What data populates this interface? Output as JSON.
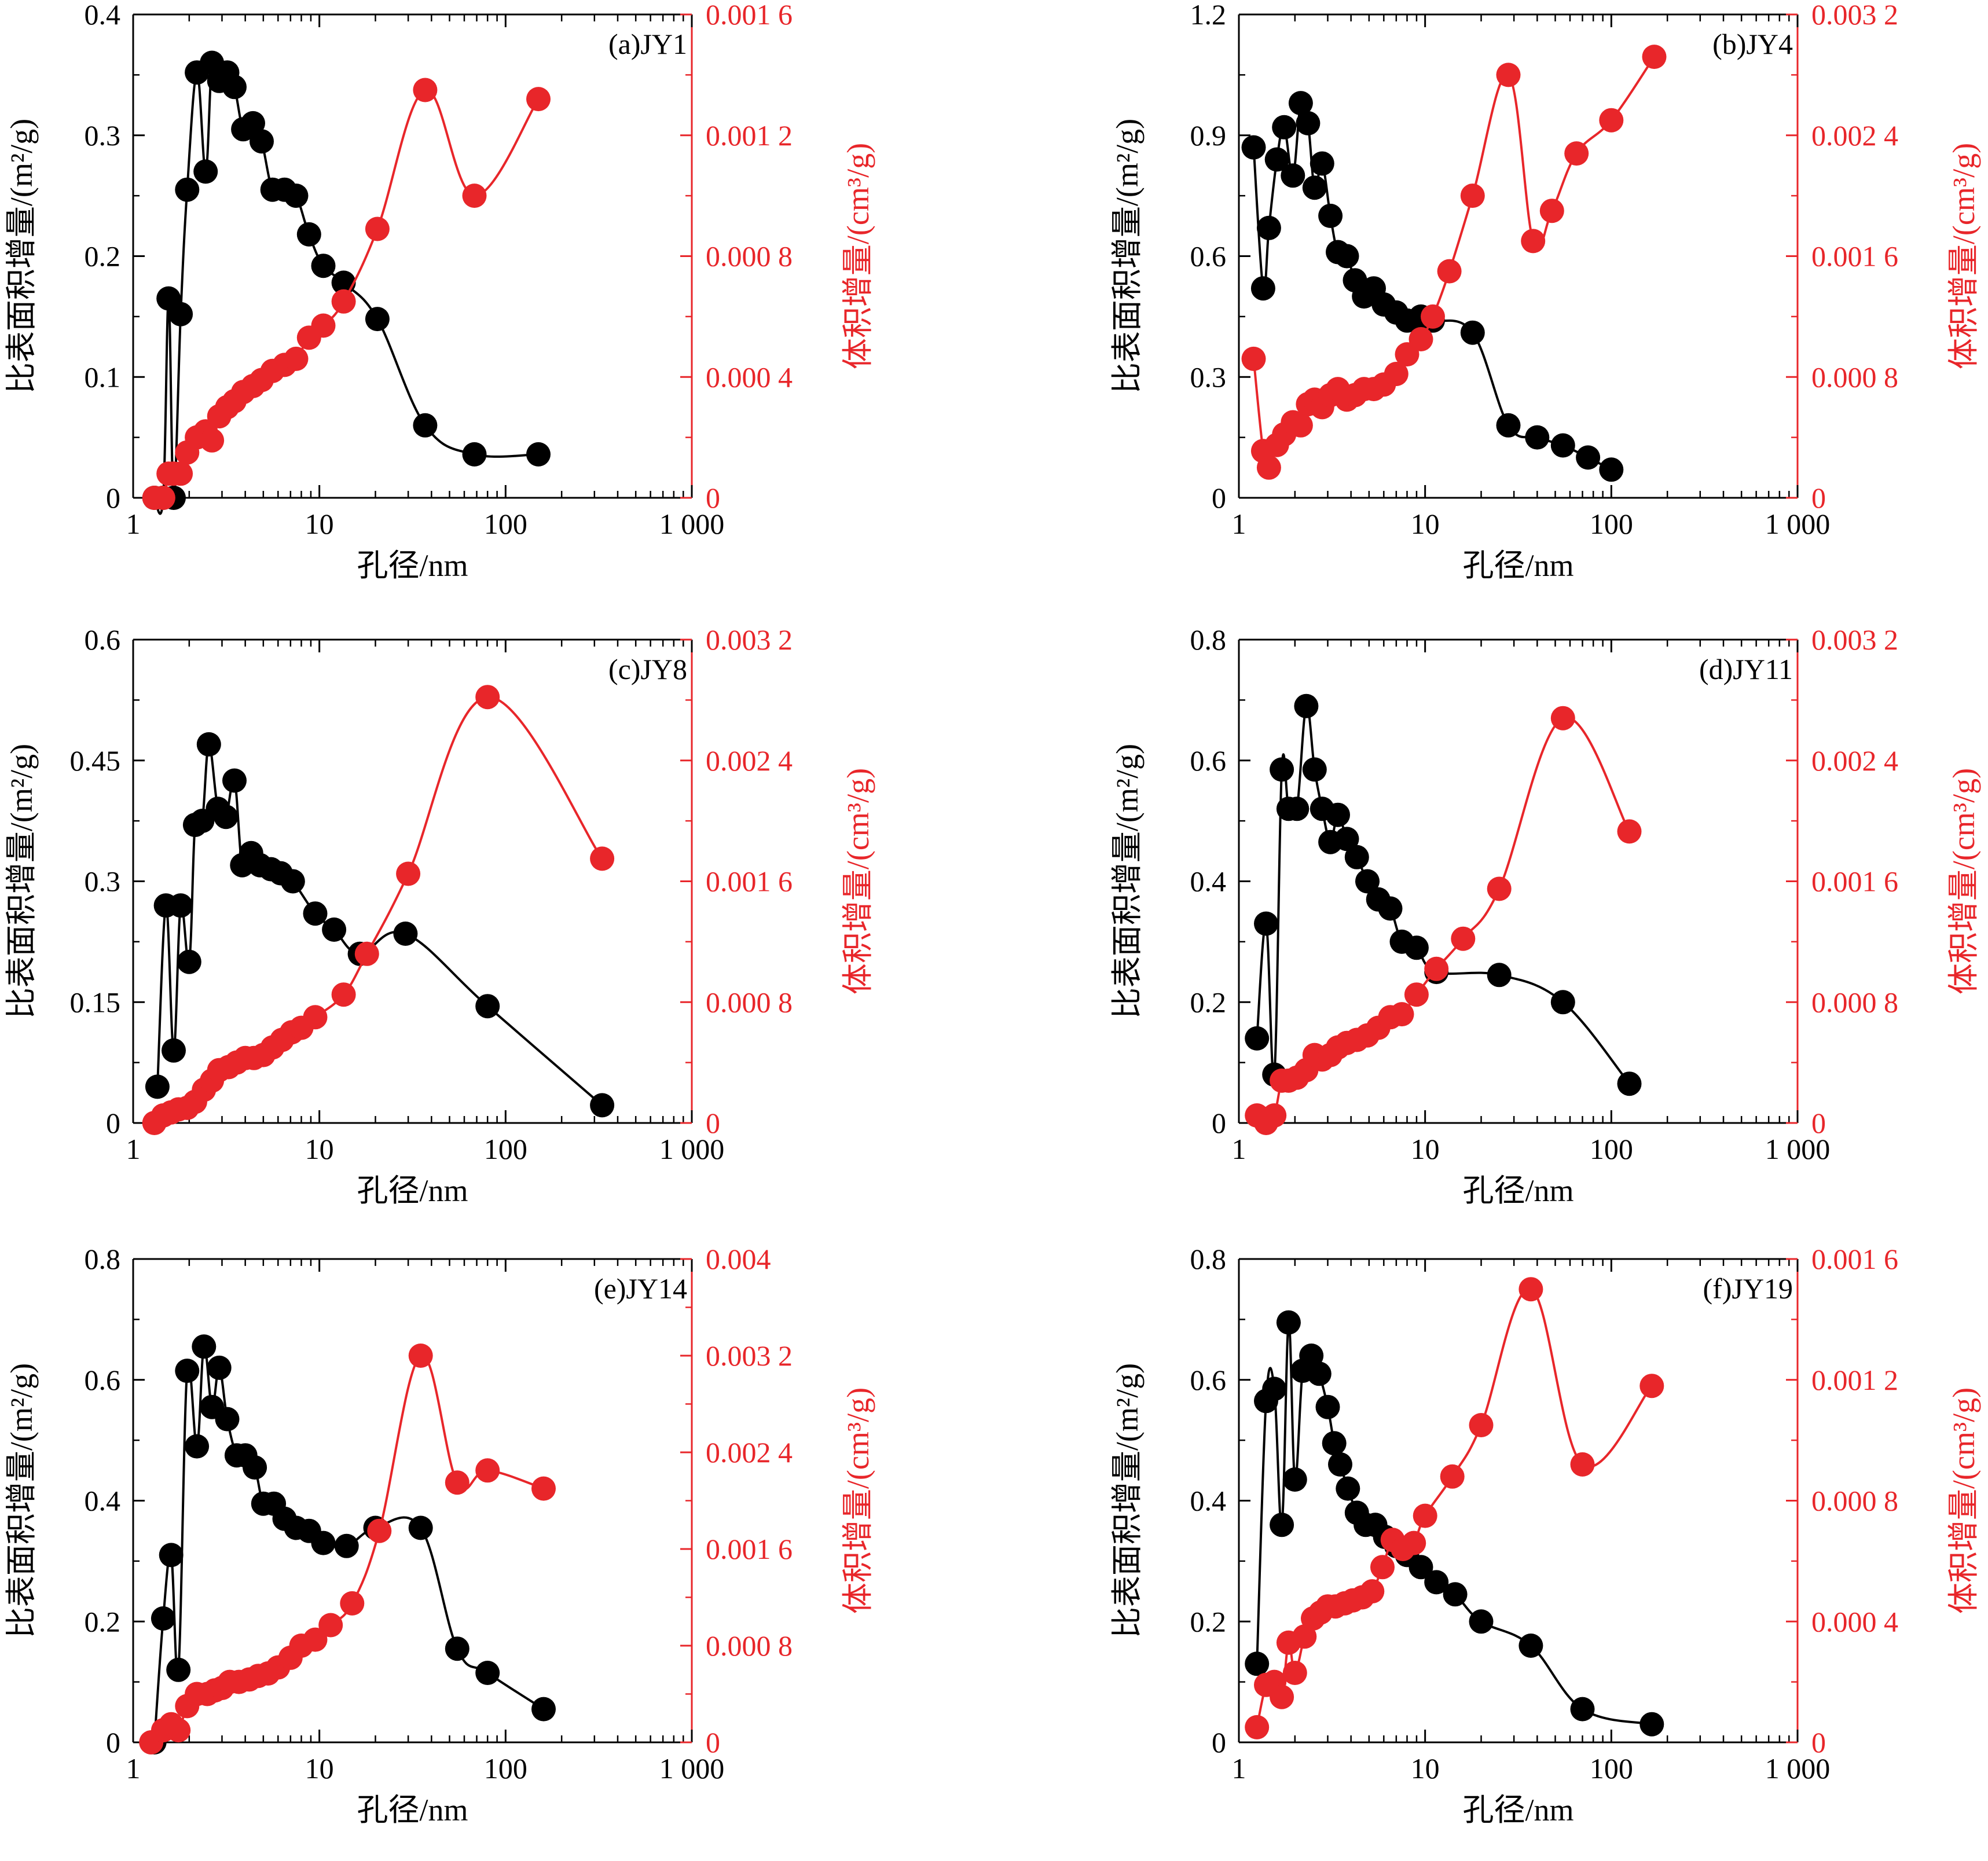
{
  "figure": {
    "x_tick_labels": [
      "1",
      "10",
      "100",
      "1 000"
    ]
  },
  "chart_data": [
    {
      "panel": "(a)JY1",
      "type": "line",
      "xlabel": "孔径/nm",
      "ylabel_left": "比表面积增量/(m²/g)",
      "ylabel_right": "体积增量/(cm³/g)",
      "x_scale": "log",
      "xlim": [
        1,
        1000
      ],
      "ylim_left": [
        0,
        0.4
      ],
      "ylim_right": [
        0,
        0.0016
      ],
      "left_ticks": [
        "0",
        "0.1",
        "0.2",
        "0.3",
        "0.4"
      ],
      "right_ticks": [
        "0",
        "0.000 4",
        "0.000 8",
        "0.001 2",
        "0.001 6"
      ],
      "colors": {
        "surface_area": "#000000",
        "volume": "#e8262a"
      },
      "series": [
        {
          "axis": "left",
          "x": [
            1.3,
            1.45,
            1.55,
            1.65,
            1.8,
            1.95,
            2.2,
            2.45,
            2.65,
            2.9,
            3.2,
            3.5,
            3.9,
            4.4,
            4.9,
            5.6,
            6.5,
            7.5,
            8.8,
            10.5,
            13.5,
            20.5,
            37,
            68,
            150
          ],
          "values": [
            0.0,
            0.0,
            0.165,
            0.0,
            0.152,
            0.255,
            0.352,
            0.27,
            0.36,
            0.345,
            0.352,
            0.34,
            0.305,
            0.31,
            0.295,
            0.255,
            0.255,
            0.25,
            0.218,
            0.192,
            0.178,
            0.148,
            0.06,
            0.036,
            0.036
          ]
        },
        {
          "axis": "right",
          "x": [
            1.3,
            1.45,
            1.55,
            1.65,
            1.8,
            1.95,
            2.2,
            2.45,
            2.65,
            2.9,
            3.2,
            3.5,
            3.9,
            4.4,
            4.9,
            5.6,
            6.5,
            7.5,
            8.8,
            10.5,
            13.5,
            20.5,
            37,
            68,
            150
          ],
          "values": [
            0.0,
            0.0,
            8e-05,
            8e-05,
            8e-05,
            0.00015,
            0.0002,
            0.00022,
            0.00019,
            0.00027,
            0.0003,
            0.00032,
            0.00035,
            0.00037,
            0.00039,
            0.00042,
            0.00044,
            0.00046,
            0.00053,
            0.00057,
            0.00065,
            0.00089,
            0.00135,
            0.001,
            0.00132
          ]
        }
      ]
    },
    {
      "panel": "(b)JY4",
      "type": "line",
      "xlabel": "孔径/nm",
      "ylabel_left": "比表面积增量/(m²/g)",
      "ylabel_right": "体积增量/(cm³/g)",
      "x_scale": "log",
      "xlim": [
        1,
        1000
      ],
      "ylim_left": [
        0,
        1.2
      ],
      "ylim_right": [
        0,
        0.0032
      ],
      "left_ticks": [
        "0",
        "0.3",
        "0.6",
        "0.9",
        "1.2"
      ],
      "right_ticks": [
        "0",
        "0.000 8",
        "0.001 6",
        "0.002 4",
        "0.003 2"
      ],
      "colors": {
        "surface_area": "#000000",
        "volume": "#e8262a"
      },
      "series": [
        {
          "axis": "left",
          "x": [
            1.2,
            1.35,
            1.45,
            1.6,
            1.75,
            1.95,
            2.15,
            2.35,
            2.55,
            2.8,
            3.1,
            3.4,
            3.8,
            4.2,
            4.7,
            5.3,
            6.0,
            7.0,
            8.0,
            9.5,
            11.0,
            18.0,
            28.0,
            40.0,
            55.0,
            75.0,
            100.0
          ],
          "values": [
            0.87,
            0.52,
            0.67,
            0.84,
            0.92,
            0.8,
            0.98,
            0.93,
            0.77,
            0.83,
            0.7,
            0.61,
            0.6,
            0.54,
            0.5,
            0.52,
            0.48,
            0.46,
            0.44,
            0.45,
            0.44,
            0.41,
            0.18,
            0.15,
            0.13,
            0.1,
            0.07
          ]
        },
        {
          "axis": "right",
          "x": [
            1.2,
            1.35,
            1.45,
            1.6,
            1.75,
            1.95,
            2.15,
            2.35,
            2.55,
            2.8,
            3.1,
            3.4,
            3.8,
            4.2,
            4.7,
            5.3,
            6.0,
            7.0,
            8.0,
            9.5,
            11.0,
            13.5,
            18.0,
            28.0,
            38.0,
            48.0,
            65.0,
            100.0,
            170.0
          ],
          "values": [
            0.00092,
            0.00031,
            0.0002,
            0.00035,
            0.00042,
            0.0005,
            0.00048,
            0.00062,
            0.00065,
            0.0006,
            0.00068,
            0.00072,
            0.00065,
            0.00068,
            0.00072,
            0.00072,
            0.00075,
            0.00082,
            0.00095,
            0.00105,
            0.0012,
            0.0015,
            0.002,
            0.0028,
            0.0017,
            0.0019,
            0.00228,
            0.0025,
            0.00292
          ]
        }
      ]
    },
    {
      "panel": "(c)JY8",
      "type": "line",
      "xlabel": "孔径/nm",
      "ylabel_left": "比表面积增量/(m²/g)",
      "ylabel_right": "体积增量/(cm³/g)",
      "x_scale": "log",
      "xlim": [
        1,
        1000
      ],
      "ylim_left": [
        0,
        0.6
      ],
      "ylim_right": [
        0,
        0.0032
      ],
      "left_ticks": [
        "0",
        "0.15",
        "0.3",
        "0.45",
        "0.6"
      ],
      "right_ticks": [
        "0",
        "0.000 8",
        "0.001 6",
        "0.002 4",
        "0.003 2"
      ],
      "colors": {
        "surface_area": "#000000",
        "volume": "#e8262a"
      },
      "series": [
        {
          "axis": "left",
          "x": [
            1.35,
            1.5,
            1.65,
            1.8,
            2.0,
            2.15,
            2.35,
            2.55,
            2.85,
            3.15,
            3.5,
            3.85,
            4.3,
            4.8,
            5.5,
            6.2,
            7.2,
            9.5,
            12.0,
            16.5,
            29.0,
            80.0,
            330.0
          ],
          "values": [
            0.045,
            0.27,
            0.09,
            0.27,
            0.2,
            0.37,
            0.375,
            0.47,
            0.39,
            0.38,
            0.425,
            0.32,
            0.335,
            0.32,
            0.315,
            0.31,
            0.3,
            0.26,
            0.24,
            0.21,
            0.235,
            0.145,
            0.022
          ]
        },
        {
          "axis": "right",
          "x": [
            1.3,
            1.45,
            1.6,
            1.75,
            1.95,
            2.15,
            2.4,
            2.65,
            2.9,
            3.25,
            3.6,
            4.0,
            4.45,
            5.0,
            5.6,
            6.3,
            7.1,
            8.0,
            9.5,
            13.5,
            18.0,
            30.0,
            80.0,
            330.0
          ],
          "values": [
            0.0,
            5e-05,
            7e-05,
            9e-05,
            0.0001,
            0.00014,
            0.00022,
            0.00028,
            0.00035,
            0.00037,
            0.0004,
            0.00043,
            0.00043,
            0.00045,
            0.0005,
            0.00055,
            0.0006,
            0.00063,
            0.0007,
            0.00085,
            0.00112,
            0.00165,
            0.00282,
            0.00175
          ]
        }
      ]
    },
    {
      "panel": "(d)JY11",
      "type": "line",
      "xlabel": "孔径/nm",
      "ylabel_left": "比表面积增量/(m²/g)",
      "ylabel_right": "体积增量/(cm³/g)",
      "x_scale": "log",
      "xlim": [
        1,
        1000
      ],
      "ylim_left": [
        0,
        0.8
      ],
      "ylim_right": [
        0,
        0.0032
      ],
      "left_ticks": [
        "0",
        "0.2",
        "0.4",
        "0.6",
        "0.8"
      ],
      "right_ticks": [
        "0",
        "0.000 8",
        "0.001 6",
        "0.002 4",
        "0.003 2"
      ],
      "colors": {
        "surface_area": "#000000",
        "volume": "#e8262a"
      },
      "series": [
        {
          "axis": "left",
          "x": [
            1.25,
            1.4,
            1.55,
            1.7,
            1.85,
            2.05,
            2.3,
            2.55,
            2.8,
            3.1,
            3.4,
            3.8,
            4.3,
            4.9,
            5.6,
            6.5,
            7.5,
            9.0,
            11.5,
            25.0,
            55.0,
            125.0
          ],
          "values": [
            0.14,
            0.33,
            0.08,
            0.585,
            0.52,
            0.52,
            0.69,
            0.585,
            0.52,
            0.465,
            0.51,
            0.47,
            0.44,
            0.4,
            0.37,
            0.355,
            0.3,
            0.29,
            0.25,
            0.245,
            0.2,
            0.065
          ]
        },
        {
          "axis": "right",
          "x": [
            1.25,
            1.4,
            1.55,
            1.7,
            1.85,
            2.05,
            2.3,
            2.55,
            2.8,
            3.1,
            3.4,
            3.8,
            4.3,
            4.9,
            5.6,
            6.5,
            7.5,
            9.0,
            11.5,
            16.0,
            25.0,
            55.0,
            125.0
          ],
          "values": [
            5e-05,
            0.0,
            5e-05,
            0.00028,
            0.00028,
            0.0003,
            0.00035,
            0.00045,
            0.00042,
            0.00045,
            0.0005,
            0.00053,
            0.00055,
            0.00058,
            0.00063,
            0.0007,
            0.00072,
            0.00085,
            0.00102,
            0.00122,
            0.00155,
            0.00268,
            0.00193
          ]
        }
      ]
    },
    {
      "panel": "(e)JY14",
      "type": "line",
      "xlabel": "孔径/nm",
      "ylabel_left": "比表面积增量/(m²/g)",
      "ylabel_right": "体积增量/(cm³/g)",
      "x_scale": "log",
      "xlim": [
        1,
        1000
      ],
      "ylim_left": [
        0,
        0.8
      ],
      "ylim_right": [
        0,
        0.004
      ],
      "left_ticks": [
        "0",
        "0.2",
        "0.4",
        "0.6",
        "0.8"
      ],
      "right_ticks": [
        "0",
        "0.000 8",
        "0.001 6",
        "0.002 4",
        "0.003 2",
        "0.004"
      ],
      "colors": {
        "surface_area": "#000000",
        "volume": "#e8262a"
      },
      "series": [
        {
          "axis": "left",
          "x": [
            1.3,
            1.45,
            1.6,
            1.75,
            1.95,
            2.2,
            2.4,
            2.65,
            2.9,
            3.2,
            3.6,
            4.0,
            4.5,
            5.0,
            5.7,
            6.5,
            7.5,
            8.8,
            10.5,
            14.0,
            20.0,
            35.0,
            55.0,
            80.0,
            160.0
          ],
          "values": [
            0.0,
            0.205,
            0.31,
            0.12,
            0.615,
            0.49,
            0.655,
            0.555,
            0.62,
            0.535,
            0.475,
            0.475,
            0.455,
            0.395,
            0.395,
            0.37,
            0.355,
            0.35,
            0.33,
            0.325,
            0.355,
            0.355,
            0.155,
            0.115,
            0.055
          ]
        },
        {
          "axis": "right",
          "x": [
            1.25,
            1.45,
            1.6,
            1.75,
            1.95,
            2.2,
            2.5,
            2.75,
            3.0,
            3.3,
            3.7,
            4.2,
            4.7,
            5.3,
            6.0,
            7.0,
            8.0,
            9.5,
            11.5,
            15.0,
            21.0,
            35.0,
            55.0,
            80.0,
            160.0
          ],
          "values": [
            0.0,
            0.0001,
            0.00015,
            0.0001,
            0.0003,
            0.0004,
            0.0004,
            0.00043,
            0.00045,
            0.0005,
            0.0005,
            0.00052,
            0.00055,
            0.00057,
            0.00062,
            0.0007,
            0.0008,
            0.00085,
            0.00097,
            0.00115,
            0.00175,
            0.0032,
            0.00215,
            0.00225,
            0.0021
          ]
        }
      ]
    },
    {
      "panel": "(f)JY19",
      "type": "line",
      "xlabel": "孔径/nm",
      "ylabel_left": "比表面积增量/(m²/g)",
      "ylabel_right": "体积增量/(cm³/g)",
      "x_scale": "log",
      "xlim": [
        1,
        1000
      ],
      "ylim_left": [
        0,
        0.8
      ],
      "ylim_right": [
        0,
        0.0016
      ],
      "left_ticks": [
        "0",
        "0.2",
        "0.4",
        "0.6",
        "0.8"
      ],
      "right_ticks": [
        "0",
        "0.000 4",
        "0.000 8",
        "0.001 2",
        "0.001 6"
      ],
      "colors": {
        "surface_area": "#000000",
        "volume": "#e8262a"
      },
      "series": [
        {
          "axis": "left",
          "x": [
            1.25,
            1.4,
            1.55,
            1.7,
            1.85,
            2.0,
            2.2,
            2.45,
            2.7,
            3.0,
            3.25,
            3.5,
            3.85,
            4.3,
            4.8,
            5.4,
            6.1,
            7.0,
            8.0,
            9.5,
            11.5,
            14.5,
            20.0,
            37.0,
            70.0,
            165.0
          ],
          "values": [
            0.13,
            0.565,
            0.585,
            0.36,
            0.695,
            0.435,
            0.615,
            0.64,
            0.61,
            0.555,
            0.495,
            0.46,
            0.42,
            0.38,
            0.36,
            0.36,
            0.34,
            0.325,
            0.31,
            0.29,
            0.265,
            0.245,
            0.2,
            0.16,
            0.055,
            0.03
          ]
        },
        {
          "axis": "right",
          "x": [
            1.25,
            1.4,
            1.55,
            1.7,
            1.85,
            2.0,
            2.25,
            2.5,
            2.75,
            3.0,
            3.3,
            3.7,
            4.1,
            4.6,
            5.2,
            5.9,
            6.7,
            7.6,
            8.7,
            10.0,
            14.0,
            20.0,
            37.0,
            70.0,
            165.0
          ],
          "values": [
            5e-05,
            0.00019,
            0.0002,
            0.00015,
            0.00033,
            0.00023,
            0.00035,
            0.00041,
            0.00043,
            0.00045,
            0.00045,
            0.00046,
            0.00047,
            0.00048,
            0.0005,
            0.00058,
            0.00067,
            0.00064,
            0.00066,
            0.00075,
            0.00088,
            0.00105,
            0.0015,
            0.00092,
            0.00118
          ]
        }
      ]
    }
  ]
}
